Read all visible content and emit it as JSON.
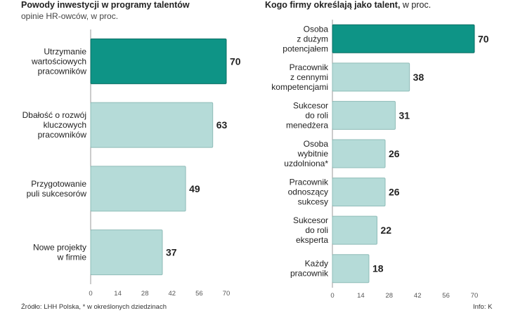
{
  "left": {
    "title_bold": "Powody inwestycji w programy talentów",
    "title_rest": "",
    "subtitle": "opinie HR-owców, w proc."
  },
  "right": {
    "title_bold": "Kogo firmy określają jako talent,",
    "title_rest": " w proc.",
    "subtitle": ""
  },
  "footer": {
    "source": "Źródło: LHH Polska, * w określonych dziedzinach",
    "credit": "Info: K"
  },
  "colors": {
    "highlight": "#0e9486",
    "bar": "#b5dbd8",
    "highlight_stroke": "#0a6e63",
    "bar_stroke": "#8fbcb8"
  },
  "chart_data": [
    {
      "type": "bar",
      "orientation": "horizontal",
      "title": "Powody inwestycji w programy talentów",
      "subtitle": "opinie HR-owców, w proc.",
      "categories": [
        "Utrzymanie wartościowych pracowników",
        "Dbałość o rozwój kluczowych pracowników",
        "Przygotowanie puli sukcesorów",
        "Nowe projekty w firmie"
      ],
      "category_lines": [
        [
          "Utrzymanie",
          "wartościowych",
          "pracowników"
        ],
        [
          "Dbałość o rozwój",
          "kluczowych",
          "pracowników"
        ],
        [
          "Przygotowanie",
          "puli sukcesorów"
        ],
        [
          "Nowe projekty",
          "w firmie"
        ]
      ],
      "values": [
        70,
        63,
        49,
        37
      ],
      "highlight_index": 0,
      "xlim": [
        0,
        70
      ],
      "xticks": [
        0,
        14,
        28,
        42,
        56,
        70
      ],
      "grid": false,
      "xlabel": "",
      "ylabel": ""
    },
    {
      "type": "bar",
      "orientation": "horizontal",
      "title": "Kogo firmy określają jako talent, w proc.",
      "categories": [
        "Osoba z dużym potencjałem",
        "Pracownik z cennymi kompetencjami",
        "Sukcesor do roli menedżera",
        "Osoba wybitnie uzdolniona*",
        "Pracownik odnoszący sukcesy",
        "Sukcesor do roli eksperta",
        "Każdy pracownik"
      ],
      "category_lines": [
        [
          "Osoba",
          "z dużym",
          "potencjałem"
        ],
        [
          "Pracownik",
          "z cennymi",
          "kompetencjami"
        ],
        [
          "Sukcesor",
          "do roli",
          "menedżera"
        ],
        [
          "Osoba",
          "wybitnie",
          "uzdolniona*"
        ],
        [
          "Pracownik",
          "odnoszący",
          "sukcesy"
        ],
        [
          "Sukcesor",
          "do roli",
          "eksperta"
        ],
        [
          "Każdy",
          "pracownik"
        ]
      ],
      "values": [
        70,
        38,
        31,
        26,
        26,
        22,
        18
      ],
      "highlight_index": 0,
      "xlim": [
        0,
        70
      ],
      "xticks": [
        0,
        14,
        28,
        42,
        56,
        70
      ],
      "grid": false,
      "xlabel": "",
      "ylabel": ""
    }
  ]
}
